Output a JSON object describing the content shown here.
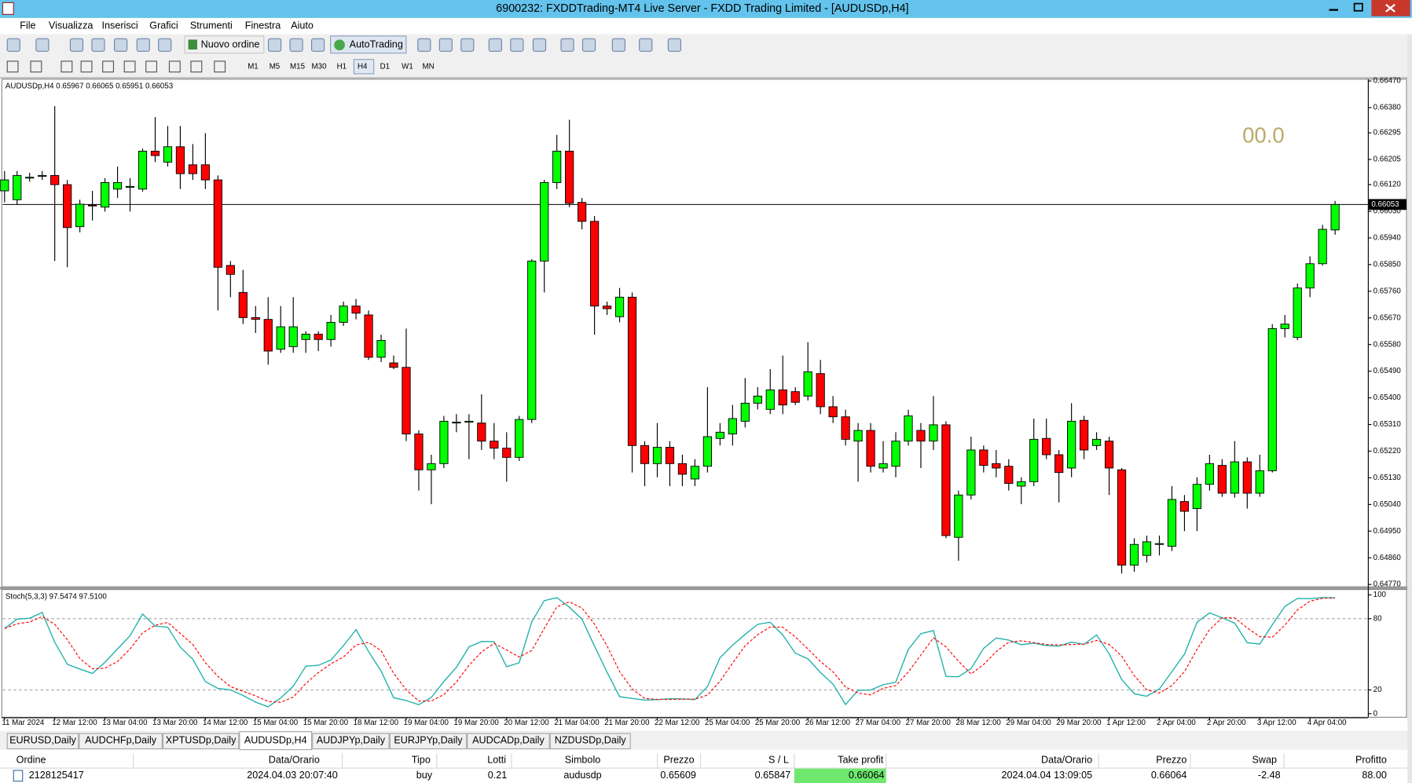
{
  "window": {
    "title": "6900232: FXDDTrading-MT4 Live Server - FXDD Trading Limited - [AUDUSDp,H4]",
    "menu": [
      "File",
      "Visualizza",
      "Inserisci",
      "Grafici",
      "Strumenti",
      "Finestra",
      "Aiuto"
    ]
  },
  "toolbar": {
    "new_order": "Nuovo ordine",
    "autotrading": "AutoTrading",
    "timeframes": [
      "M1",
      "M5",
      "M15",
      "M30",
      "H1",
      "H4",
      "D1",
      "W1",
      "MN"
    ],
    "active_timeframe": 5
  },
  "chart_data": {
    "type": "candlestick",
    "info": "AUDUSDp,H4  0.65967 0.66065 0.65951 0.66053",
    "overlay_text": "00.0",
    "up_color": "#00ff00",
    "down_color": "#ff0000",
    "grid": false,
    "ylim": [
      0.64762,
      0.66476
    ],
    "yticks": [
      {
        "value": 0.6647,
        "label": "0.66470"
      },
      {
        "value": 0.6638,
        "label": "0.66380"
      },
      0.66295,
      0.66205,
      {
        "value": 0.6612,
        "label": "0.66120"
      },
      {
        "value": 0.6603,
        "label": "0.66030"
      },
      {
        "value": 0.6594,
        "label": "0.65940"
      },
      {
        "value": 0.6585,
        "label": "0.65850"
      },
      {
        "value": 0.6576,
        "label": "0.65760"
      },
      {
        "value": 0.6567,
        "label": "0.65670"
      },
      {
        "value": 0.6558,
        "label": "0.65580"
      },
      {
        "value": 0.6549,
        "label": "0.65490"
      },
      {
        "value": 0.654,
        "label": "0.65400"
      },
      {
        "value": 0.6531,
        "label": "0.65310"
      },
      {
        "value": 0.6522,
        "label": "0.65220"
      },
      {
        "value": 0.6513,
        "label": "0.65130"
      },
      {
        "value": 0.6504,
        "label": "0.65040"
      },
      {
        "value": 0.6495,
        "label": "0.64950"
      },
      {
        "value": 0.6486,
        "label": "0.64860"
      },
      {
        "value": 0.6477,
        "label": "0.64770"
      }
    ],
    "current_price": 0.66053,
    "x_labels": [
      "11 Mar 2024",
      "12 Mar 12:00",
      "13 Mar 04:00",
      "13 Mar 20:00",
      "14 Mar 12:00",
      "15 Mar 04:00",
      "15 Mar 20:00",
      "18 Mar 12:00",
      "19 Mar 04:00",
      "19 Mar 20:00",
      "20 Mar 12:00",
      "21 Mar 04:00",
      "21 Mar 20:00",
      "22 Mar 12:00",
      "25 Mar 04:00",
      "25 Mar 20:00",
      "26 Mar 12:00",
      "27 Mar 04:00",
      "27 Mar 20:00",
      "28 Mar 12:00",
      "29 Mar 04:00",
      "29 Mar 20:00",
      "1 Apr 12:00",
      "2 Apr 04:00",
      "2 Apr 20:00",
      "3 Apr 12:00",
      "4 Apr 04:00"
    ],
    "candles": [
      [
        0.66099,
        0.66166,
        0.6606,
        0.66136
      ],
      [
        0.66069,
        0.66166,
        0.66051,
        0.66151
      ],
      [
        0.66145,
        0.6616,
        0.6613,
        0.66145
      ],
      [
        0.66151,
        0.66166,
        0.66136,
        0.66151
      ],
      [
        0.66151,
        0.66385,
        0.65862,
        0.6612
      ],
      [
        0.6612,
        0.66136,
        0.65841,
        0.65975
      ],
      [
        0.65978,
        0.66069,
        0.65959,
        0.66054
      ],
      [
        0.66051,
        0.66099,
        0.65999,
        0.66048
      ],
      [
        0.66044,
        0.66142,
        0.66029,
        0.66127
      ],
      [
        0.66105,
        0.66181,
        0.66075,
        0.66127
      ],
      [
        0.66111,
        0.66142,
        0.66029,
        0.66114
      ],
      [
        0.66105,
        0.66242,
        0.66096,
        0.66233
      ],
      [
        0.66233,
        0.66348,
        0.66196,
        0.66218
      ],
      [
        0.66196,
        0.66318,
        0.66181,
        0.66248
      ],
      [
        0.66248,
        0.66318,
        0.66105,
        0.66157
      ],
      [
        0.66187,
        0.66257,
        0.66136,
        0.66157
      ],
      [
        0.66187,
        0.66294,
        0.66105,
        0.66136
      ],
      [
        0.66136,
        0.66151,
        0.65695,
        0.65841
      ],
      [
        0.65847,
        0.65862,
        0.6574,
        0.65817
      ],
      [
        0.65756,
        0.65832,
        0.65649,
        0.65671
      ],
      [
        0.65671,
        0.6571,
        0.65619,
        0.65665
      ],
      [
        0.65665,
        0.6574,
        0.65512,
        0.65558
      ],
      [
        0.65564,
        0.6571,
        0.65552,
        0.6564
      ],
      [
        0.65573,
        0.6574,
        0.65552,
        0.6564
      ],
      [
        0.65597,
        0.65625,
        0.65552,
        0.65615
      ],
      [
        0.65615,
        0.65625,
        0.65558,
        0.65597
      ],
      [
        0.65597,
        0.6568,
        0.65573,
        0.65655
      ],
      [
        0.65655,
        0.65725,
        0.65643,
        0.6571
      ],
      [
        0.6571,
        0.65734,
        0.65665,
        0.65686
      ],
      [
        0.6568,
        0.65695,
        0.65528,
        0.65537
      ],
      [
        0.65537,
        0.65613,
        0.65521,
        0.65594
      ],
      [
        0.65518,
        0.65543,
        0.65497,
        0.65503
      ],
      [
        0.65503,
        0.65634,
        0.65254,
        0.65278
      ],
      [
        0.65278,
        0.6529,
        0.65087,
        0.65157
      ],
      [
        0.65157,
        0.65208,
        0.65041,
        0.65178
      ],
      [
        0.65178,
        0.65339,
        0.65163,
        0.65321
      ],
      [
        0.65315,
        0.65345,
        0.65284,
        0.65318
      ],
      [
        0.65321,
        0.65345,
        0.65193,
        0.65321
      ],
      [
        0.65315,
        0.65412,
        0.65224,
        0.65254
      ],
      [
        0.65254,
        0.65315,
        0.65193,
        0.6523
      ],
      [
        0.6523,
        0.65284,
        0.65117,
        0.65199
      ],
      [
        0.65199,
        0.65339,
        0.65187,
        0.65327
      ],
      [
        0.65327,
        0.65868,
        0.65315,
        0.65862
      ],
      [
        0.65862,
        0.66136,
        0.65756,
        0.66127
      ],
      [
        0.66127,
        0.66288,
        0.66105,
        0.66233
      ],
      [
        0.66233,
        0.66339,
        0.66044,
        0.66057
      ],
      [
        0.6606,
        0.66075,
        0.65969,
        0.65996
      ],
      [
        0.65996,
        0.66014,
        0.65613,
        0.6571
      ],
      [
        0.6571,
        0.65725,
        0.6568,
        0.65701
      ],
      [
        0.65674,
        0.65771,
        0.65655,
        0.6574
      ],
      [
        0.6574,
        0.65756,
        0.65148,
        0.65239
      ],
      [
        0.65239,
        0.65254,
        0.65102,
        0.65178
      ],
      [
        0.65178,
        0.65315,
        0.65132,
        0.65233
      ],
      [
        0.65233,
        0.65254,
        0.65102,
        0.65178
      ],
      [
        0.65178,
        0.65208,
        0.65102,
        0.65142
      ],
      [
        0.65126,
        0.65193,
        0.65102,
        0.65169
      ],
      [
        0.65169,
        0.65436,
        0.65148,
        0.65269
      ],
      [
        0.65263,
        0.65315,
        0.65239,
        0.65284
      ],
      [
        0.65278,
        0.65376,
        0.65239,
        0.6533
      ],
      [
        0.65321,
        0.65467,
        0.653,
        0.65382
      ],
      [
        0.65382,
        0.65436,
        0.65361,
        0.65406
      ],
      [
        0.65361,
        0.65497,
        0.65345,
        0.65427
      ],
      [
        0.65427,
        0.65543,
        0.65345,
        0.65376
      ],
      [
        0.65421,
        0.65436,
        0.65376,
        0.65385
      ],
      [
        0.65406,
        0.65588,
        0.65391,
        0.65488
      ],
      [
        0.65482,
        0.65528,
        0.65345,
        0.6537
      ],
      [
        0.6537,
        0.65406,
        0.65315,
        0.65336
      ],
      [
        0.65336,
        0.6536,
        0.65239,
        0.6526
      ],
      [
        0.65254,
        0.65315,
        0.65117,
        0.6529
      ],
      [
        0.6529,
        0.65315,
        0.65148,
        0.65169
      ],
      [
        0.65163,
        0.65254,
        0.65148,
        0.65178
      ],
      [
        0.65169,
        0.65284,
        0.65132,
        0.65254
      ],
      [
        0.65254,
        0.6536,
        0.65239,
        0.65339
      ],
      [
        0.6529,
        0.65315,
        0.65163,
        0.65254
      ],
      [
        0.65254,
        0.65406,
        0.65224,
        0.65309
      ],
      [
        0.65309,
        0.65321,
        0.64926,
        0.64935
      ],
      [
        0.64929,
        0.65087,
        0.6485,
        0.65072
      ],
      [
        0.65072,
        0.65269,
        0.65057,
        0.65224
      ],
      [
        0.65224,
        0.65239,
        0.65148,
        0.65172
      ],
      [
        0.65178,
        0.65224,
        0.65132,
        0.65163
      ],
      [
        0.65169,
        0.65193,
        0.65087,
        0.65111
      ],
      [
        0.65102,
        0.65132,
        0.65041,
        0.65117
      ],
      [
        0.65117,
        0.6533,
        0.65102,
        0.6526
      ],
      [
        0.65263,
        0.6533,
        0.65193,
        0.65208
      ],
      [
        0.65208,
        0.65224,
        0.65047,
        0.65148
      ],
      [
        0.65163,
        0.65382,
        0.65132,
        0.65321
      ],
      [
        0.65324,
        0.65339,
        0.65193,
        0.65224
      ],
      [
        0.65239,
        0.65284,
        0.65224,
        0.6526
      ],
      [
        0.65254,
        0.65269,
        0.65072,
        0.65163
      ],
      [
        0.65157,
        0.65163,
        0.64807,
        0.64835
      ],
      [
        0.64835,
        0.64926,
        0.64813,
        0.64905
      ],
      [
        0.64868,
        0.64935,
        0.64844,
        0.64914
      ],
      [
        0.64905,
        0.64935,
        0.64868,
        0.64908
      ],
      [
        0.64899,
        0.65102,
        0.64883,
        0.65057
      ],
      [
        0.6505,
        0.65072,
        0.6495,
        0.65017
      ],
      [
        0.65026,
        0.65132,
        0.6495,
        0.65108
      ],
      [
        0.65108,
        0.65208,
        0.65087,
        0.65178
      ],
      [
        0.65172,
        0.65193,
        0.65066,
        0.65078
      ],
      [
        0.65078,
        0.65254,
        0.65063,
        0.65184
      ],
      [
        0.65184,
        0.65199,
        0.65026,
        0.65078
      ],
      [
        0.65078,
        0.65208,
        0.65066,
        0.65154
      ],
      [
        0.65154,
        0.65649,
        0.65148,
        0.65634
      ],
      [
        0.65634,
        0.6568,
        0.65604,
        0.65649
      ],
      [
        0.65604,
        0.65786,
        0.65595,
        0.65771
      ],
      [
        0.65771,
        0.65878,
        0.6574,
        0.65853
      ],
      [
        0.65853,
        0.65984,
        0.65847,
        0.65969
      ],
      [
        0.65967,
        0.66065,
        0.65951,
        0.66053
      ]
    ]
  },
  "stoch": {
    "label": "Stoch(5,3,3) 97.5474 97.5100",
    "k_period": 5,
    "d_period": 3,
    "slowing": 3,
    "ylim": [
      0,
      100
    ],
    "yticks": [
      100,
      80,
      20,
      0
    ],
    "levels": [
      80,
      20
    ],
    "main_color": "#20b2aa",
    "signal_color": "#ff0000"
  },
  "tabs": [
    "EURUSD,Daily",
    "AUDCHFp,Daily",
    "XPTUSDp,Daily",
    "AUDUSDp,H4",
    "AUDJPYp,Daily",
    "EURJPYp,Daily",
    "AUDCADp,Daily",
    "NZDUSDp,Daily"
  ],
  "active_tab": 3,
  "terminal": {
    "columns": [
      "Ordine",
      "Data/Orario",
      "Tipo",
      "Lotti",
      "Simbolo",
      "Prezzo",
      "S / L",
      "Take profit",
      "Data/Orario",
      "Prezzo",
      "Swap",
      "Profitto"
    ],
    "rows": [
      [
        "2128125417",
        "2024.04.03 20:07:40",
        "buy",
        "0.21",
        "audusdp",
        "0.65609",
        "0.65847",
        "0.66064",
        "2024.04.04 13:09:05",
        "0.66064",
        "-2.48",
        "88.00"
      ]
    ]
  }
}
